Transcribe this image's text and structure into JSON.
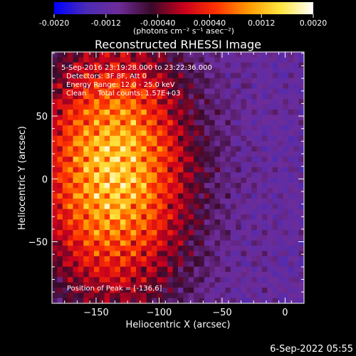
{
  "colorbar": {
    "colors": [
      "#0000ff",
      "#4b2bb5",
      "#6e2c98",
      "#3a0a2a",
      "#c8001e",
      "#ff3200",
      "#ff9a00",
      "#ffe640",
      "#ffffff"
    ],
    "range": [
      -0.002,
      0.002
    ],
    "tick_labels": [
      "-0.0020",
      "-0.0012",
      "-0.00040",
      "0.00040",
      "0.0012",
      "0.0020"
    ],
    "tick_values": [
      -0.002,
      -0.0012,
      -0.0004,
      0.0004,
      0.0012,
      0.002
    ],
    "unit_label": "(photons cm⁻² s⁻¹ asec⁻²)"
  },
  "chart_data": {
    "type": "heatmap",
    "title": "Reconstructed RHESSI Image",
    "xlabel": "Heliocentric X (arcsec)",
    "ylabel": "Heliocentric Y (arcsec)",
    "xlim": [
      -185,
      15
    ],
    "ylim": [
      -99,
      101
    ],
    "x_ticks": [
      -150,
      -100,
      -50,
      0
    ],
    "y_ticks": [
      50,
      0,
      -50
    ],
    "x_tick_labels": [
      "−150",
      "−100",
      "−50",
      "0"
    ],
    "y_tick_labels": [
      "50",
      "0",
      "−50"
    ],
    "peak_position": [
      -136,
      6
    ],
    "annotations": [
      "5-Sep-2016 23:19:28.000 to 23:22:36.000",
      "Detectors: 3F 8F, Att 0",
      "Energy Range: 12.0 - 25.0 keV",
      "Clean     Total counts: 1.57E+03"
    ],
    "peak_label": "Position of Peak = [-136,6]"
  },
  "footer": {
    "date": "6-Sep-2022 05:55"
  }
}
